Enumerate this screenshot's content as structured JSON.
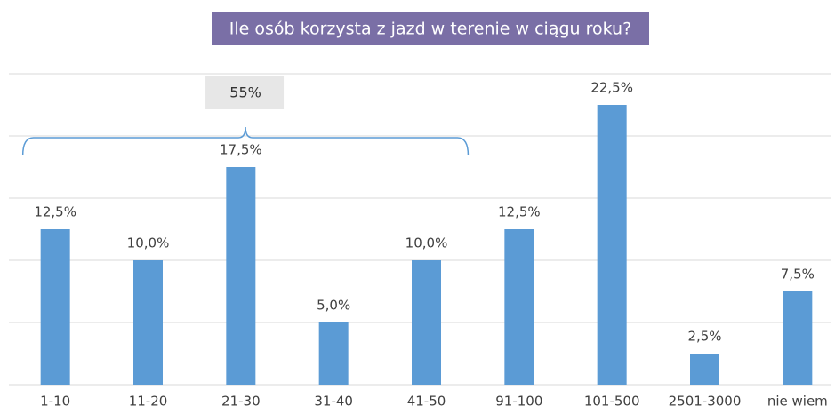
{
  "chart_data": {
    "type": "bar",
    "title": "Ile osób korzysta z jazd w terenie w ciągu roku?",
    "categories": [
      "1-10",
      "11-20",
      "21-30",
      "31-40",
      "41-50",
      "91-100",
      "101-500",
      "2501-3000",
      "nie wiem"
    ],
    "values": [
      12.5,
      10.0,
      17.5,
      5.0,
      10.0,
      12.5,
      22.5,
      2.5,
      7.5
    ],
    "value_labels": [
      "12,5%",
      "10,0%",
      "17,5%",
      "5,0%",
      "10,0%",
      "12,5%",
      "22,5%",
      "2,5%",
      "7,5%"
    ],
    "color": "#5b9bd5",
    "ylim": [
      0,
      25
    ],
    "yticks": [
      0,
      5,
      10,
      15,
      20,
      25
    ],
    "grid": true,
    "annotation": "55%"
  }
}
